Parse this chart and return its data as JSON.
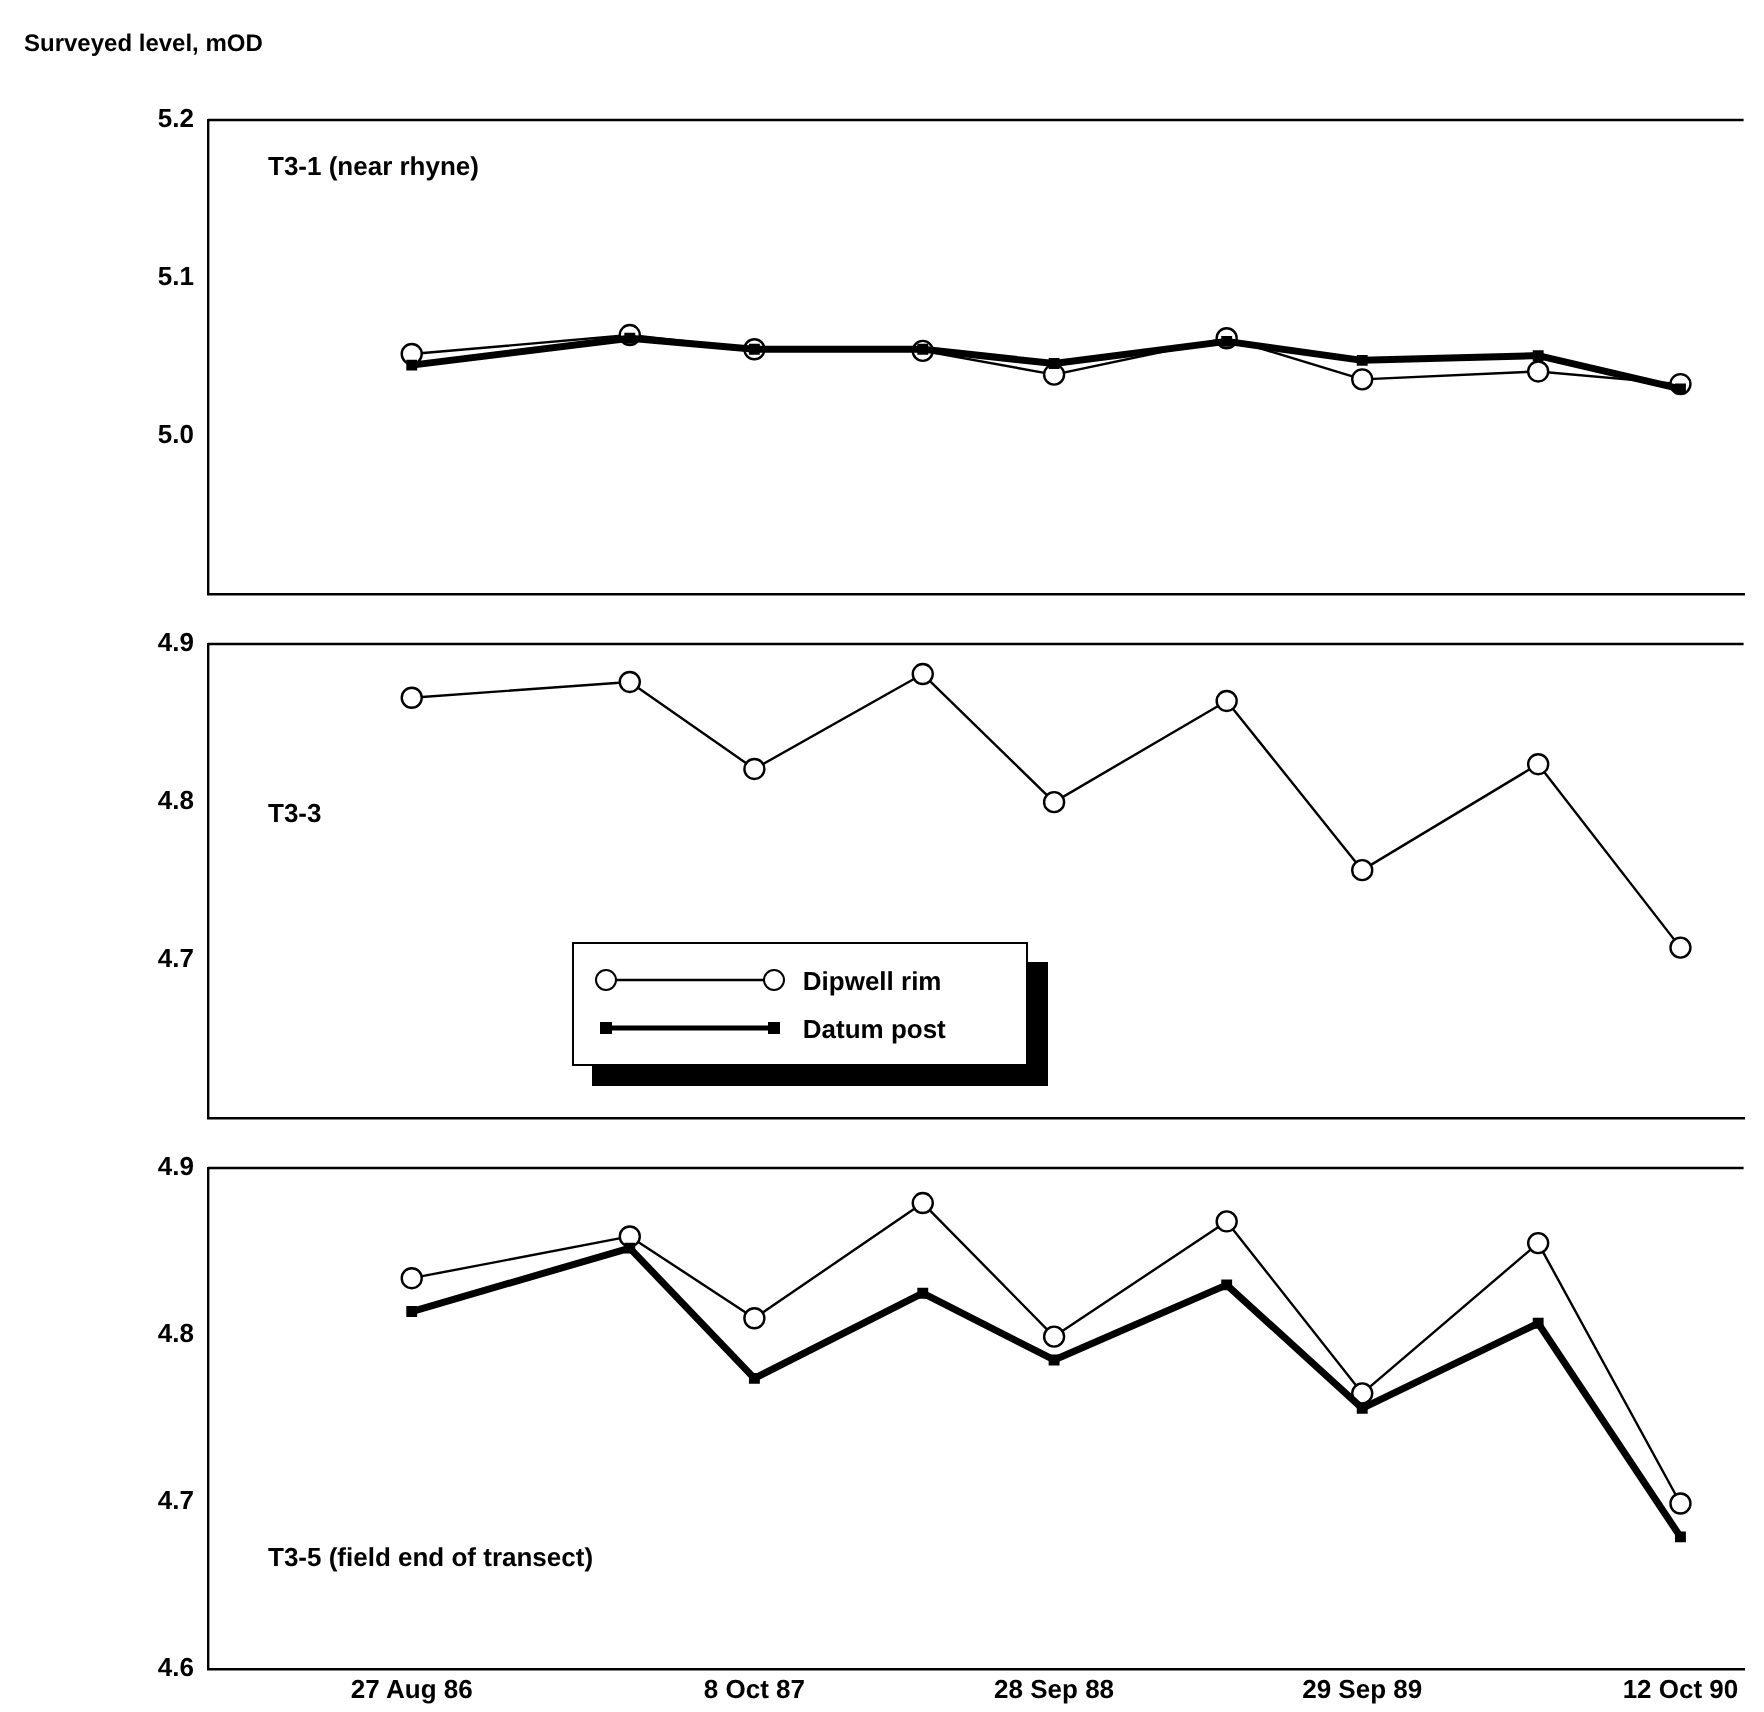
{
  "chart_data": [
    {
      "type": "line",
      "title": "T3-1 (near rhyne)",
      "ylabel": "Surveyed level, mOD",
      "x": [
        "1986-08-27",
        "1987-05-13",
        "1987-10-08",
        "1988-04-25",
        "1988-09-28",
        "1989-04-21",
        "1989-09-29",
        "1990-04-26",
        "1990-10-12"
      ],
      "series": [
        {
          "color": "#000000",
          "marker": "circle",
          "values": [
            5.052,
            5.064,
            5.055,
            5.054,
            5.039,
            5.062,
            5.036,
            5.041,
            5.033
          ]
        },
        {
          "color": "#000000",
          "marker": "square",
          "values": [
            5.045,
            5.062,
            5.055,
            5.055,
            5.046,
            5.06,
            5.048,
            5.051,
            5.03
          ]
        }
      ],
      "xlim": [
        "1985-12-28",
        "1990-12-26"
      ],
      "ylim": [
        4.9,
        5.2
      ],
      "yticks": [
        {
          "value": 5,
          "label": "5.0"
        },
        {
          "value": 5.1,
          "label": "5.1"
        },
        {
          "value": 5.2,
          "label": "5.2"
        }
      ],
      "tick_labels": "y",
      "grid": false,
      "legend": false
    },
    {
      "type": "line",
      "title": "T3-3",
      "x": [
        "1986-08-27",
        "1987-05-13",
        "1987-10-08",
        "1988-04-25",
        "1988-09-28",
        "1989-04-21",
        "1989-09-29",
        "1990-04-26",
        "1990-10-12"
      ],
      "series": [
        {
          "name": "Dipwell rim",
          "color": "#000000",
          "marker": "circle",
          "values": [
            4.866,
            4.876,
            4.821,
            4.881,
            4.8,
            4.864,
            4.757,
            4.824,
            4.708
          ]
        },
        {
          "name": "Datum post",
          "color": "#000000",
          "marker": "square",
          "values": [
            null,
            null,
            null,
            null,
            null,
            null,
            null,
            null,
            null
          ]
        }
      ],
      "xlim": [
        "1985-12-28",
        "1990-12-26"
      ],
      "ylim": [
        4.6,
        4.9
      ],
      "yticks": [
        {
          "value": 4.7,
          "label": "4.7"
        },
        {
          "value": 4.8,
          "label": "4.8"
        },
        {
          "value": 4.9,
          "label": "4.9"
        }
      ],
      "tick_labels": "y",
      "grid": false,
      "legend": "bottom"
    },
    {
      "type": "line",
      "title": "T3-5 (field end of transect)",
      "x": [
        "1986-08-27",
        "1987-05-13",
        "1987-10-08",
        "1988-04-25",
        "1988-09-28",
        "1989-04-21",
        "1989-09-29",
        "1990-04-26",
        "1990-10-12"
      ],
      "series": [
        {
          "color": "#000000",
          "marker": "circle",
          "values": [
            4.834,
            4.859,
            4.81,
            4.879,
            4.799,
            4.868,
            4.765,
            4.855,
            4.699
          ]
        },
        {
          "color": "#000000",
          "marker": "square",
          "values": [
            4.814,
            4.852,
            4.774,
            4.825,
            4.785,
            4.83,
            4.756,
            4.807,
            4.679
          ]
        }
      ],
      "xlim": [
        "1985-12-28",
        "1990-12-26"
      ],
      "xticks": [
        {
          "value": "1986-08-27",
          "label": "27 Aug 86"
        },
        {
          "value": "1987-10-08",
          "label": "8 Oct 87"
        },
        {
          "value": "1988-09-28",
          "label": "28 Sep 88"
        },
        {
          "value": "1989-09-29",
          "label": "29 Sep 89"
        },
        {
          "value": "1990-10-12",
          "label": "12 Oct 90"
        }
      ],
      "ylim": [
        4.6,
        4.9
      ],
      "yticks": [
        {
          "value": 4.6,
          "label": "4.6"
        },
        {
          "value": 4.7,
          "label": "4.7"
        },
        {
          "value": 4.8,
          "label": "4.8"
        },
        {
          "value": 4.9,
          "label": "4.9"
        }
      ],
      "grid": false,
      "legend": false
    }
  ]
}
